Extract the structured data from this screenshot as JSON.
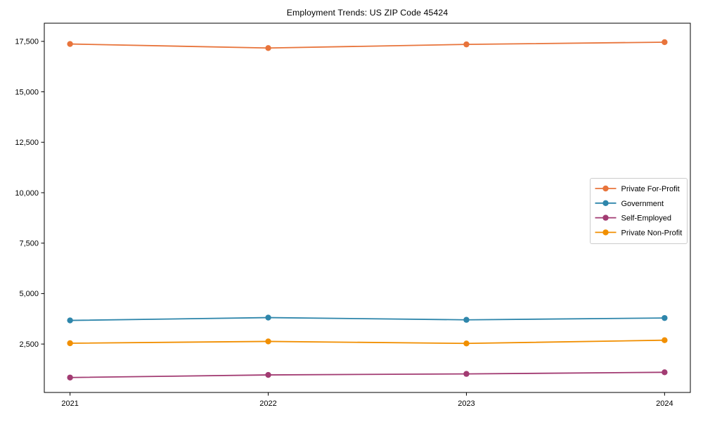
{
  "figure": {
    "title": "Employment Trends: US ZIP Code 45424",
    "background_color": "#ffffff",
    "plot_border_color": "#000000"
  },
  "chart_data": {
    "type": "line",
    "title": "Employment Trends: US ZIP Code 45424",
    "xlabel": "",
    "ylabel": "",
    "categories": [
      2021,
      2022,
      2023,
      2024
    ],
    "xtick_labels": [
      "2021",
      "2022",
      "2023",
      "2024"
    ],
    "series": [
      {
        "name": "Private For-Profit",
        "color": "#E8743B",
        "values": [
          17370,
          17170,
          17350,
          17460
        ]
      },
      {
        "name": "Government",
        "color": "#2E86AB",
        "values": [
          3670,
          3810,
          3700,
          3790
        ]
      },
      {
        "name": "Self-Employed",
        "color": "#A23B72",
        "values": [
          840,
          970,
          1020,
          1100
        ]
      },
      {
        "name": "Private Non-Profit",
        "color": "#F18F01",
        "values": [
          2540,
          2630,
          2530,
          2690
        ]
      }
    ],
    "yticks": [
      2500,
      5000,
      7500,
      10000,
      12500,
      15000,
      17500
    ],
    "ytick_labels": [
      "2,500",
      "5,000",
      "7,500",
      "10,000",
      "12,500",
      "15,000",
      "17,500"
    ],
    "xlim": [
      2020.87,
      2024.13
    ],
    "ylim": [
      100,
      18400
    ],
    "grid": false,
    "legend_position": "center right",
    "marker": "circle",
    "legend_border_color": "#cccccc"
  }
}
